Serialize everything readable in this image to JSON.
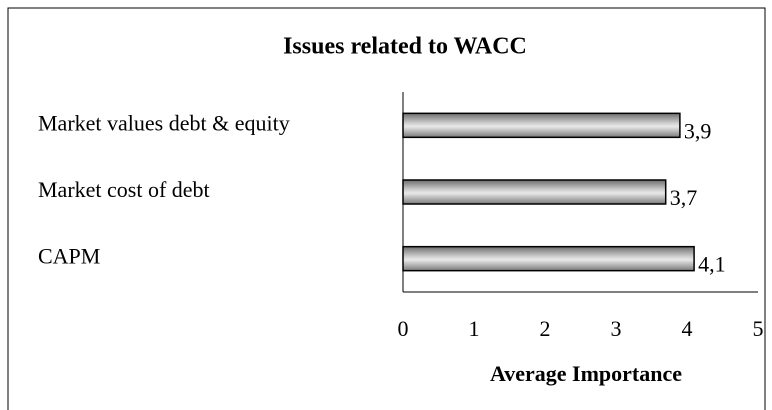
{
  "chart_data": {
    "type": "bar",
    "orientation": "horizontal",
    "title": "Issues related to WACC",
    "x_label": "Average Importance",
    "categories": [
      "Market values debt & equity",
      "Market cost of debt",
      "CAPM"
    ],
    "values": [
      3.9,
      3.7,
      4.1
    ],
    "value_labels": [
      "3,9",
      "3,7",
      "4,1"
    ],
    "color": "#8c8c8c",
    "xlim": [
      0,
      5
    ],
    "xticks": [
      0,
      1,
      2,
      3,
      4,
      5
    ],
    "grid": false
  }
}
